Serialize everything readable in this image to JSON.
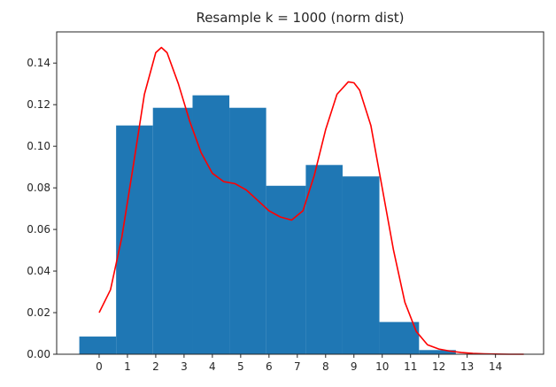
{
  "chart_data": {
    "type": "bar",
    "title": "Resample k = 1000 (norm dist)",
    "xlabel": "",
    "ylabel": "",
    "xlim": [
      -1.5,
      15.7
    ],
    "ylim": [
      0,
      0.155
    ],
    "x_ticks": [
      0,
      1,
      2,
      3,
      4,
      5,
      6,
      7,
      8,
      9,
      10,
      11,
      12,
      13,
      14
    ],
    "y_ticks": [
      "0.00",
      "0.02",
      "0.04",
      "0.06",
      "0.08",
      "0.10",
      "0.12",
      "0.14"
    ],
    "bars": [
      {
        "x0": -0.7,
        "x1": 0.6,
        "value": 0.0085
      },
      {
        "x0": 0.6,
        "x1": 1.9,
        "value": 0.11
      },
      {
        "x0": 1.9,
        "x1": 3.3,
        "value": 0.1185
      },
      {
        "x0": 3.3,
        "x1": 4.6,
        "value": 0.1245
      },
      {
        "x0": 4.6,
        "x1": 5.9,
        "value": 0.1185
      },
      {
        "x0": 5.9,
        "x1": 7.3,
        "value": 0.081
      },
      {
        "x0": 7.3,
        "x1": 8.6,
        "value": 0.091
      },
      {
        "x0": 8.6,
        "x1": 9.9,
        "value": 0.0855
      },
      {
        "x0": 9.9,
        "x1": 11.3,
        "value": 0.0155
      },
      {
        "x0": 11.3,
        "x1": 12.6,
        "value": 0.002
      }
    ],
    "series": [
      {
        "type": "line",
        "color": "#ff0000",
        "x": [
          0.0,
          0.4,
          0.8,
          1.2,
          1.6,
          2.0,
          2.2,
          2.4,
          2.8,
          3.2,
          3.6,
          4.0,
          4.4,
          4.8,
          5.2,
          5.6,
          6.0,
          6.4,
          6.8,
          7.2,
          7.6,
          8.0,
          8.4,
          8.8,
          9.0,
          9.2,
          9.6,
          10.0,
          10.4,
          10.8,
          11.2,
          11.6,
          12.0,
          12.4,
          12.8,
          13.2,
          13.6,
          14.0,
          14.5,
          15.0
        ],
        "y": [
          0.02,
          0.031,
          0.056,
          0.09,
          0.125,
          0.145,
          0.1475,
          0.145,
          0.13,
          0.112,
          0.097,
          0.087,
          0.083,
          0.082,
          0.079,
          0.074,
          0.069,
          0.066,
          0.0645,
          0.069,
          0.086,
          0.108,
          0.125,
          0.131,
          0.1305,
          0.127,
          0.11,
          0.08,
          0.05,
          0.025,
          0.011,
          0.0045,
          0.0025,
          0.0015,
          0.0008,
          0.0004,
          0.0002,
          0.0001,
          0.0,
          0.0
        ]
      }
    ],
    "colors": {
      "bars": "#1f77b4",
      "line": "#ff0000",
      "axis": "#262626"
    },
    "grid": false
  }
}
